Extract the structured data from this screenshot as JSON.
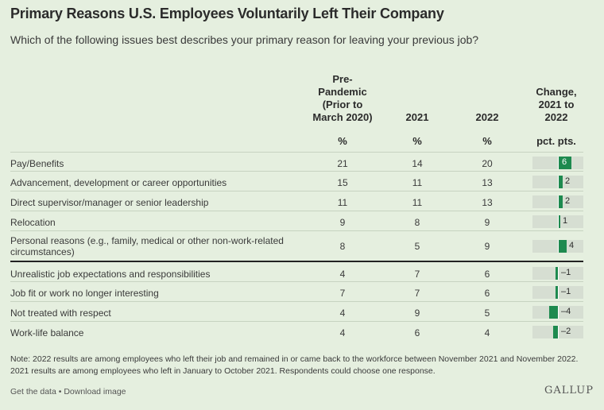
{
  "title": "Primary Reasons U.S. Employees Voluntarily Left Their Company",
  "subtitle": "Which of the following issues best describes your primary reason for leaving your previous job?",
  "columns": {
    "pre_lines": [
      "Pre-",
      "Pandemic",
      "(Prior to",
      "March 2020)"
    ],
    "y2021": "2021",
    "y2022": "2022",
    "change_lines": [
      "Change,",
      "2021 to",
      "2022"
    ],
    "unit_pct": "%",
    "unit_change": "pct. pts."
  },
  "chart_data": {
    "type": "table",
    "title": "Primary Reasons U.S. Employees Voluntarily Left Their Company",
    "columns": [
      "Pre-Pandemic (Prior to March 2020)",
      "2021",
      "2022",
      "Change, 2021 to 2022"
    ],
    "units": [
      "%",
      "%",
      "%",
      "pct. pts."
    ],
    "rows": [
      {
        "label": "Pay/Benefits",
        "pre": 21,
        "y2021": 14,
        "y2022": 20,
        "change": 6,
        "change_label": "6"
      },
      {
        "label": "Advancement, development or career opportunities",
        "pre": 15,
        "y2021": 11,
        "y2022": 13,
        "change": 2,
        "change_label": "2"
      },
      {
        "label": "Direct supervisor/manager or senior leadership",
        "pre": 11,
        "y2021": 11,
        "y2022": 13,
        "change": 2,
        "change_label": "2"
      },
      {
        "label": "Relocation",
        "pre": 9,
        "y2021": 8,
        "y2022": 9,
        "change": 1,
        "change_label": "1"
      },
      {
        "label": "Personal reasons (e.g., family, medical or other non-work-related circumstances)",
        "pre": 8,
        "y2021": 5,
        "y2022": 9,
        "change": 4,
        "change_label": "4"
      },
      {
        "label": "Unrealistic job expectations and responsibilities",
        "pre": 4,
        "y2021": 7,
        "y2022": 6,
        "change": -1,
        "change_label": "–1"
      },
      {
        "label": "Job fit or work no longer interesting",
        "pre": 7,
        "y2021": 7,
        "y2022": 6,
        "change": -1,
        "change_label": "–1"
      },
      {
        "label": "Not treated with respect",
        "pre": 4,
        "y2021": 9,
        "y2022": 5,
        "change": -4,
        "change_label": "–4"
      },
      {
        "label": "Work-life balance",
        "pre": 4,
        "y2021": 6,
        "y2022": 4,
        "change": -2,
        "change_label": "–2"
      }
    ],
    "change_range": [
      -6,
      6
    ],
    "bar_color": "#1e8a4f"
  },
  "note": "Note: 2022 results are among employees who left their job and remained in or came back to the workforce between November 2021 and November 2022. 2021 results are among employees who left in January to October 2021. Respondents could choose one response.",
  "footer": {
    "get_data": "Get the data",
    "separator": " • ",
    "download": "Download image",
    "brand": "GALLUP"
  }
}
